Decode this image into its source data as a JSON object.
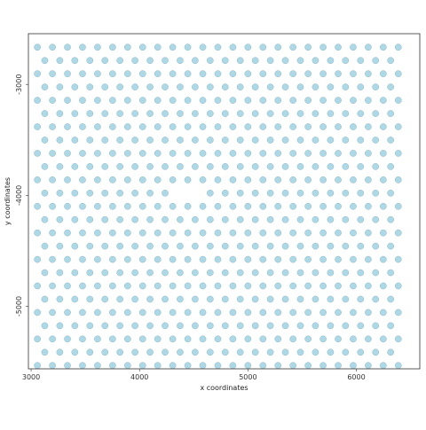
{
  "chart_data": {
    "type": "scatter",
    "title": "",
    "xlabel": "x coordinates",
    "ylabel": "y coordinates",
    "xlim": [
      2975,
      6585
    ],
    "ylim": [
      -5563,
      -2543
    ],
    "y_reversed": true,
    "grid": false,
    "legend": "none",
    "x_ticks": [
      3000,
      4000,
      5000,
      6000
    ],
    "x_tick_labels": [
      "3000",
      "4000",
      "5000",
      "6000"
    ],
    "y_ticks": [
      -3000,
      -4000,
      -5000
    ],
    "y_tick_labels": [
      "-3000",
      "-4000",
      "-5000"
    ],
    "point_color": "#add8e6",
    "point_edge_color": "#8fb8c8",
    "spot_grid": {
      "row_count": 25,
      "first_row_y": -2665,
      "row_step_y": -119.5,
      "even_rows_x": {
        "start": 3058,
        "step": 138.7,
        "count": 25
      },
      "odd_rows_x": {
        "start": 3126,
        "step": 138.7,
        "count": 24
      },
      "missing": [
        [
          11,
          9
        ],
        [
          11,
          10
        ]
      ]
    }
  }
}
